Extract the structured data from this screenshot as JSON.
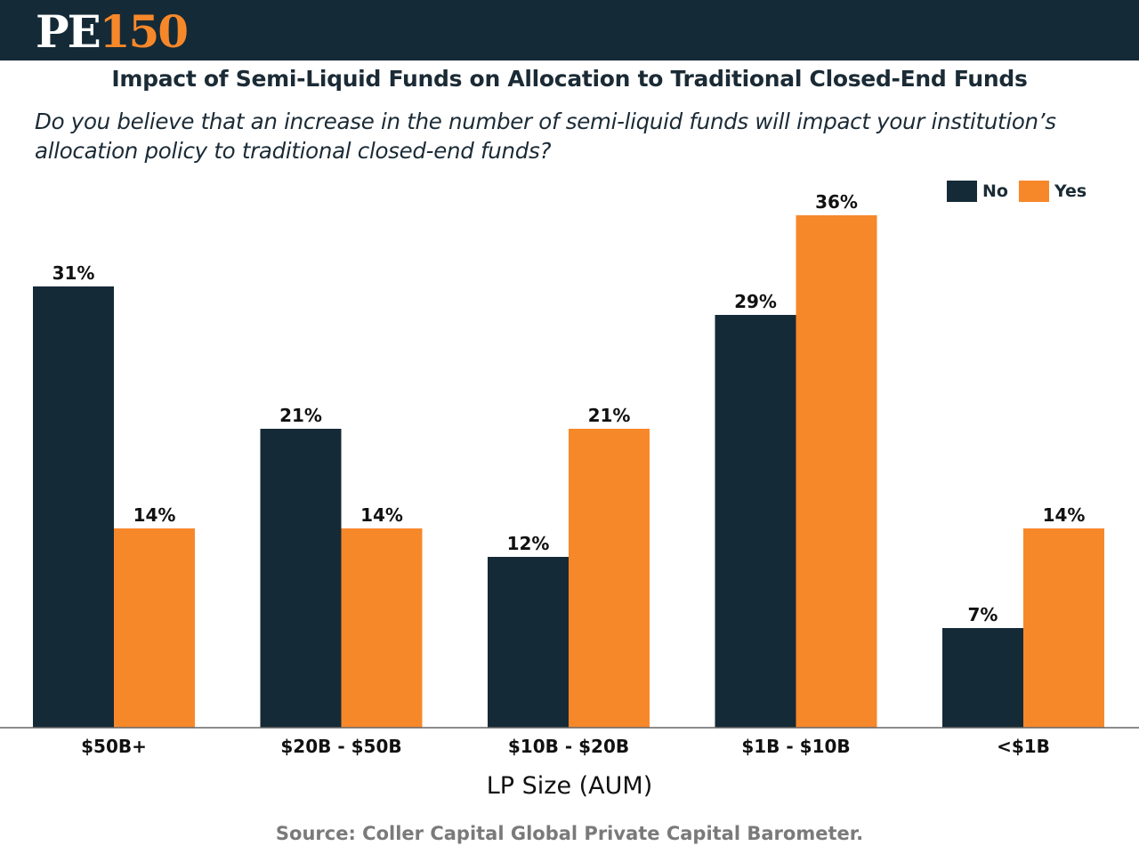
{
  "header": {
    "logo_pe": "PE",
    "logo_num": "150"
  },
  "colors": {
    "no": "#152a37",
    "yes": "#f7882a",
    "header_bg": "#152a37"
  },
  "chart_data": {
    "type": "bar",
    "title": "Impact of Semi-Liquid Funds on Allocation to Traditional Closed-End Funds",
    "subtitle": "Do you believe that an increase in the number of semi-liquid funds will impact your institution’s allocation policy to traditional closed-end funds?",
    "categories": [
      "$50B+",
      "$20B - $50B",
      "$10B - $20B",
      "$1B - $10B",
      "<$1B"
    ],
    "series": [
      {
        "name": "No",
        "values": [
          31,
          21,
          12,
          29,
          7
        ],
        "labels": [
          "31%",
          "21%",
          "12%",
          "29%",
          "7%"
        ]
      },
      {
        "name": "Yes",
        "values": [
          14,
          14,
          21,
          36,
          14
        ],
        "labels": [
          "14%",
          "14%",
          "21%",
          "36%",
          "14%"
        ]
      }
    ],
    "xlabel": "LP Size (AUM)",
    "ylabel": "",
    "ylim": [
      0,
      40
    ],
    "legend": "top-right",
    "grid": false
  },
  "source": "Source: Coller Capital Global Private Capital Barometer."
}
